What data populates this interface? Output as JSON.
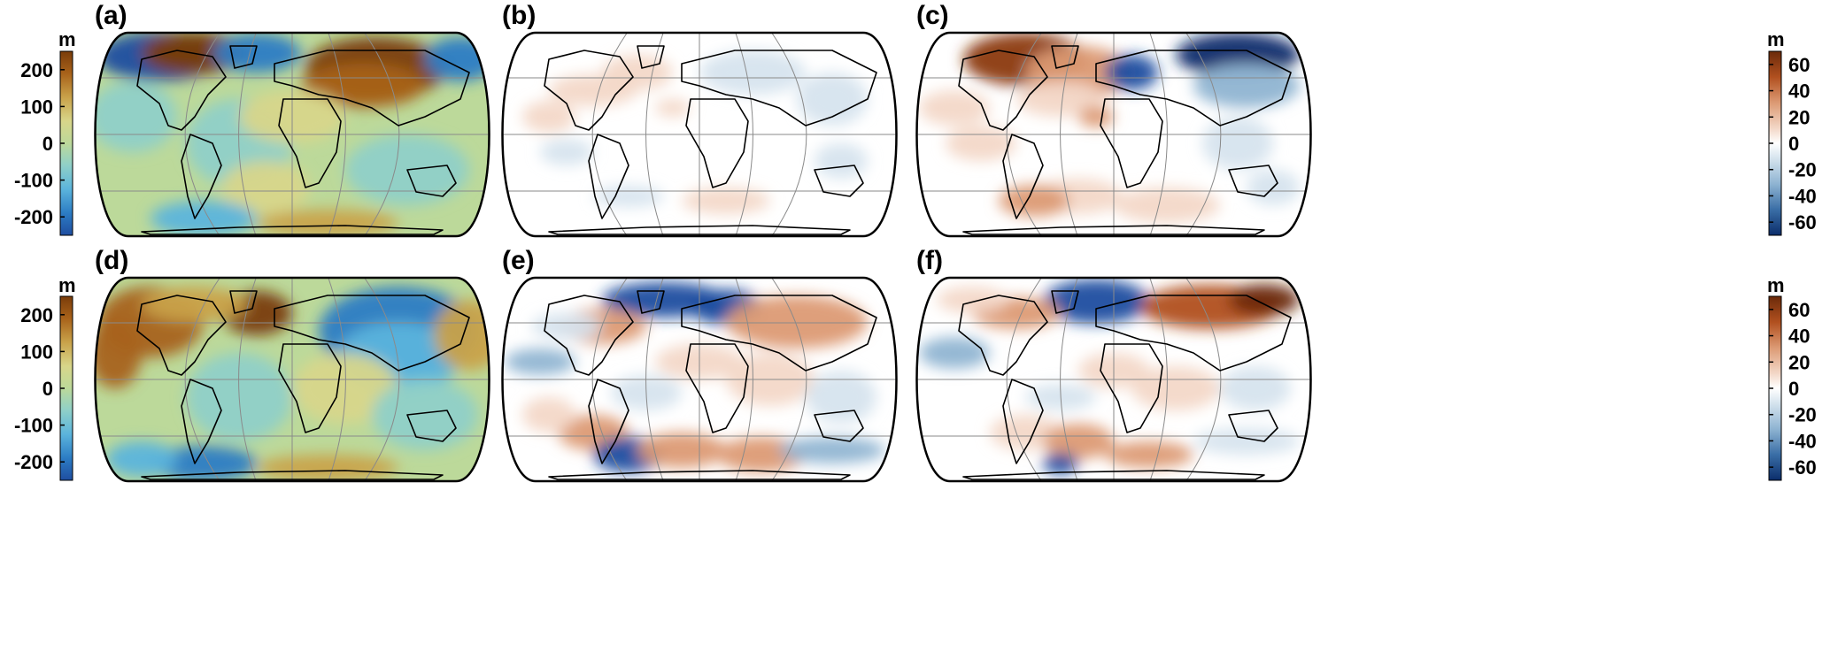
{
  "colorbars": [
    {
      "id": "left-top",
      "unit": "m",
      "ticks": [
        "200",
        "100",
        "0",
        "-100",
        "-200"
      ],
      "tick_values": [
        200,
        100,
        0,
        -100,
        -200
      ],
      "range": [
        -250,
        250
      ],
      "colormap": "warm-cool-rainbow"
    },
    {
      "id": "left-bottom",
      "unit": "m",
      "ticks": [
        "200",
        "100",
        "0",
        "-100",
        "-200"
      ],
      "tick_values": [
        200,
        100,
        0,
        -100,
        -200
      ],
      "range": [
        -250,
        250
      ],
      "colormap": "warm-cool-rainbow"
    },
    {
      "id": "right-top",
      "unit": "m",
      "ticks": [
        "60",
        "40",
        "20",
        "0",
        "-20",
        "-40",
        "-60"
      ],
      "tick_values": [
        60,
        40,
        20,
        0,
        -20,
        -40,
        -60
      ],
      "range": [
        -70,
        70
      ],
      "colormap": "brown-blue-diverging"
    },
    {
      "id": "right-bottom",
      "unit": "m",
      "ticks": [
        "60",
        "40",
        "20",
        "0",
        "-20",
        "-40",
        "-60"
      ],
      "tick_values": [
        60,
        40,
        20,
        0,
        -20,
        -40,
        -60
      ],
      "range": [
        -70,
        70
      ],
      "colormap": "brown-blue-diverging"
    }
  ],
  "panels": [
    {
      "id": "a",
      "label": "(a)",
      "colormap": "warm-cool-rainbow",
      "background": "#bcd99a"
    },
    {
      "id": "b",
      "label": "(b)",
      "colormap": "brown-blue-diverging",
      "background": "#ffffff"
    },
    {
      "id": "c",
      "label": "(c)",
      "colormap": "brown-blue-diverging",
      "background": "#ffffff"
    },
    {
      "id": "d",
      "label": "(d)",
      "colormap": "warm-cool-rainbow",
      "background": "#bcd99a"
    },
    {
      "id": "e",
      "label": "(e)",
      "colormap": "brown-blue-diverging",
      "background": "#ffffff"
    },
    {
      "id": "f",
      "label": "(f)",
      "colormap": "brown-blue-diverging",
      "background": "#ffffff"
    }
  ],
  "colors": {
    "rainbow_high": "#7a3c0a",
    "rainbow_mid": "#bcd99a",
    "rainbow_low": "#1f4ea0",
    "div_high": "#6b2a0a",
    "div_mid": "#ffffff",
    "div_low": "#0b2d6b"
  }
}
